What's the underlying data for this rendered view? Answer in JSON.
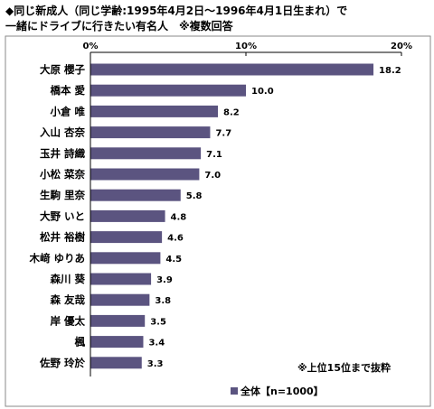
{
  "title": "◆同じ新成人（同じ学齢:1995年4月2日～1996年4月1日生まれ）で\n一緒にドライブに行きたい有名人　※複数回答",
  "chart_data": {
    "type": "bar",
    "orientation": "horizontal",
    "categories": [
      "大原 櫻子",
      "橋本 愛",
      "小倉 唯",
      "入山 杏奈",
      "玉井 詩織",
      "小松 菜奈",
      "生駒 里奈",
      "大野 いと",
      "松井 裕樹",
      "木﨑 ゆりあ",
      "森川 葵",
      "森 友哉",
      "岸 優太",
      "楓",
      "佐野 玲於"
    ],
    "series": [
      {
        "name": "全体【n=1000】",
        "values": [
          18.2,
          10.0,
          8.2,
          7.7,
          7.1,
          7.0,
          5.8,
          4.8,
          4.6,
          4.5,
          3.9,
          3.8,
          3.5,
          3.4,
          3.3
        ]
      }
    ],
    "value_labels": [
      "18.2",
      "10.0",
      "8.2",
      "7.7",
      "7.1",
      "7.0",
      "5.8",
      "4.8",
      "4.6",
      "4.5",
      "3.9",
      "3.8",
      "3.5",
      "3.4",
      "3.3"
    ],
    "xticks": [
      0,
      10,
      20
    ],
    "xtick_labels": [
      "0%",
      "10%",
      "20%"
    ],
    "xlim": [
      0,
      20
    ],
    "grid": false,
    "legend_position": "bottom",
    "annotation": "※上位15位まで抜粋",
    "colors": {
      "bar": "#5b5480",
      "axis": "#000000",
      "frame": "#8a8a8a"
    }
  }
}
